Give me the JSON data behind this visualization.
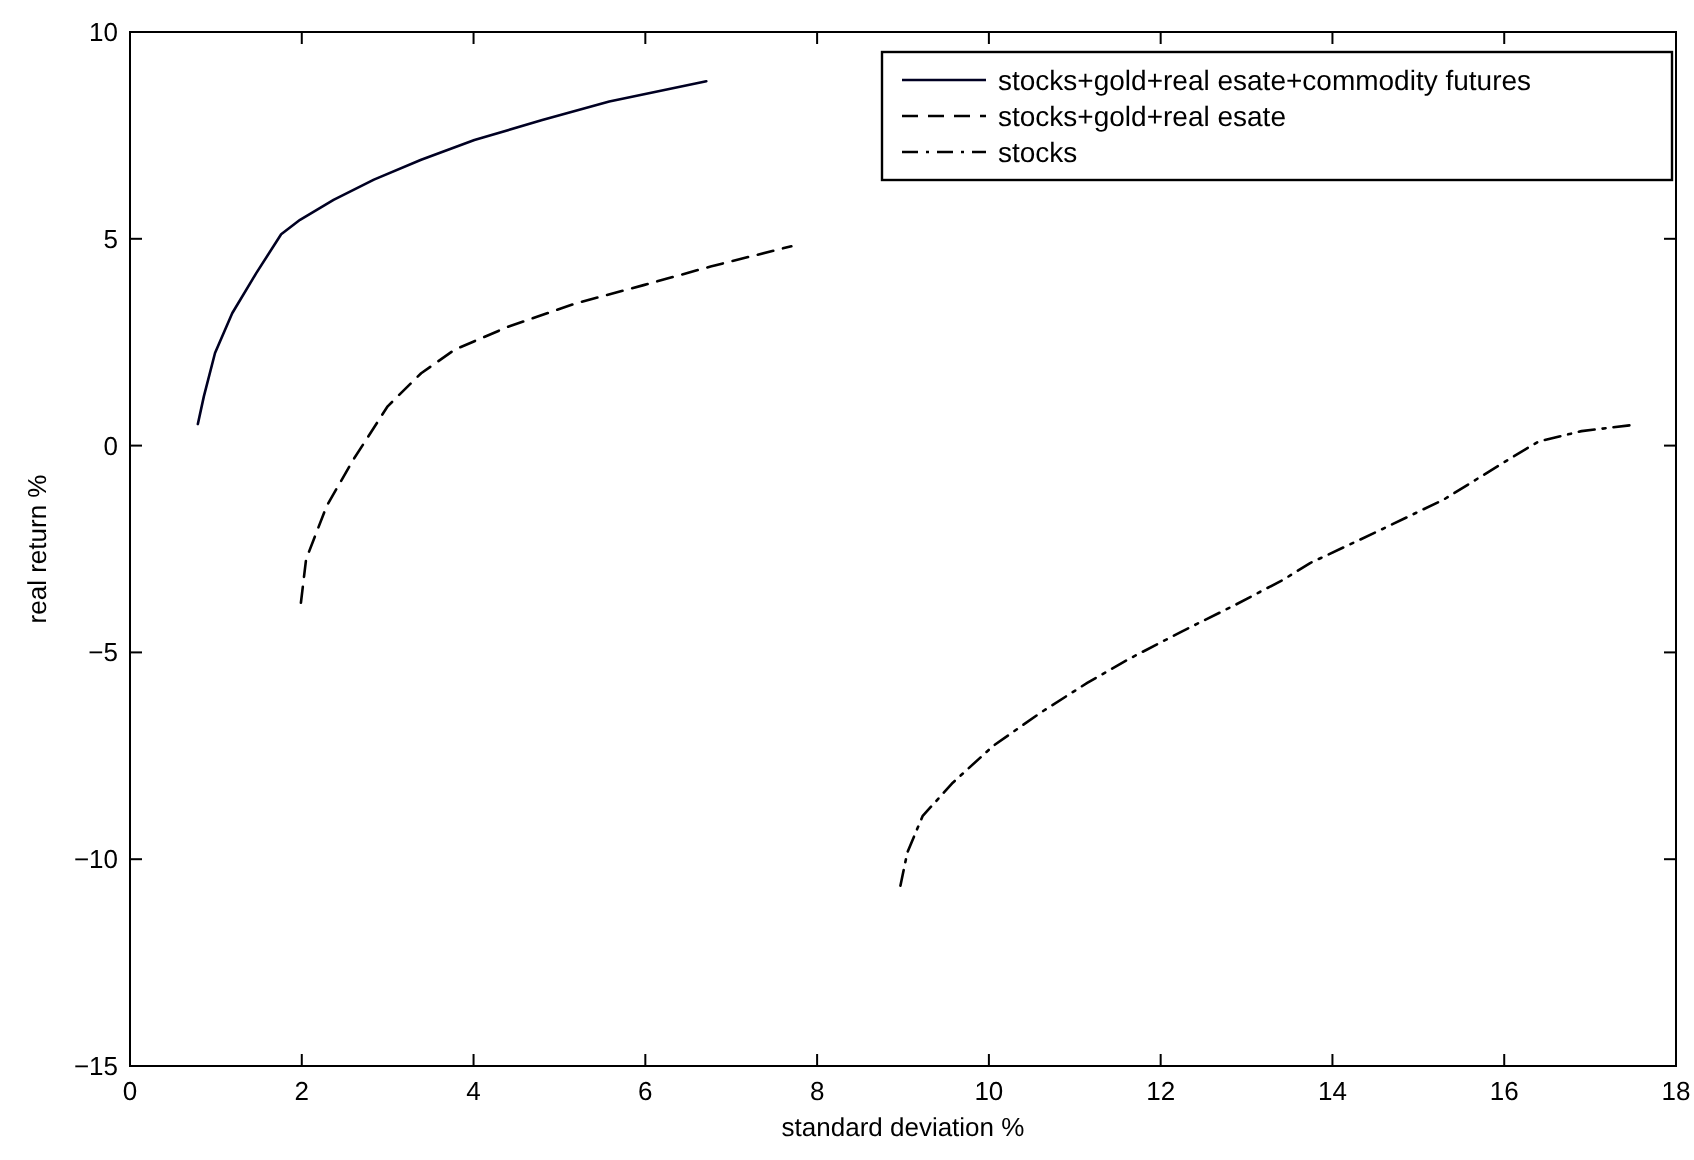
{
  "chart_data": {
    "type": "line",
    "xlabel": "standard deviation %",
    "ylabel": "real return %",
    "xlim": [
      0,
      18
    ],
    "xticks": [
      0,
      2,
      4,
      6,
      8,
      10,
      12,
      14,
      16,
      18
    ],
    "ylim": [
      -15,
      10
    ],
    "yticks": [
      -15,
      -10,
      -5,
      0,
      5,
      10
    ],
    "grid": false,
    "legend": "top right",
    "series": [
      {
        "name": "stocks+gold+real esate+commodity futures",
        "color": "#000022",
        "line_style": "solid",
        "x": [
          0.79,
          0.86,
          0.99,
          1.19,
          1.47,
          1.76,
          1.98,
          2.37,
          2.84,
          3.39,
          4.01,
          4.8,
          5.58,
          6.71
        ],
        "values": [
          0.52,
          1.19,
          2.24,
          3.2,
          4.17,
          5.11,
          5.46,
          5.94,
          6.43,
          6.91,
          7.39,
          7.87,
          8.32,
          8.81
        ]
      },
      {
        "name": "stocks+gold+real esate",
        "color": "#000000",
        "line_style": "dashed",
        "x": [
          1.99,
          2.05,
          2.29,
          2.6,
          3.0,
          3.39,
          3.78,
          4.41,
          5.19,
          5.98,
          6.76,
          7.7
        ],
        "values": [
          -3.8,
          -2.75,
          -1.46,
          -0.34,
          0.95,
          1.75,
          2.32,
          2.88,
          3.44,
          3.88,
          4.33,
          4.82
        ]
      },
      {
        "name": "stocks",
        "color": "#000000",
        "line_style": "dashdot",
        "x": [
          8.97,
          9.05,
          9.23,
          9.58,
          10.05,
          10.6,
          11.15,
          11.62,
          12.25,
          12.87,
          13.43,
          13.74,
          14.5,
          15.3,
          16.0,
          16.4,
          16.9,
          17.5
        ],
        "values": [
          -10.64,
          -9.84,
          -8.95,
          -8.15,
          -7.26,
          -6.46,
          -5.73,
          -5.17,
          -4.49,
          -3.85,
          -3.24,
          -2.84,
          -2.1,
          -1.3,
          -0.4,
          0.1,
          0.35,
          0.5
        ]
      }
    ]
  }
}
